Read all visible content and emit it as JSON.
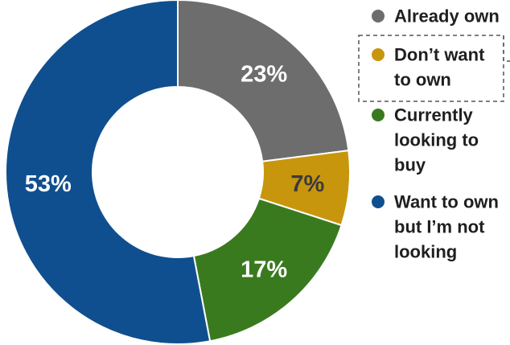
{
  "chart_data": {
    "type": "pie",
    "donut": true,
    "categories": [
      "Already own",
      "Don’t want to own",
      "Currently looking to buy",
      "Want to own but I’m not looking"
    ],
    "values": [
      23,
      7,
      17,
      53
    ],
    "value_labels": [
      "23%",
      "7%",
      "17%",
      "53%"
    ],
    "colors": [
      "#6d6d6d",
      "#c8960c",
      "#3a7a1f",
      "#0f4f8f"
    ],
    "legend": {
      "placement": "right",
      "entries": [
        {
          "lines": [
            "Already own"
          ],
          "color": "#6d6d6d",
          "highlighted": false
        },
        {
          "lines": [
            "Don’t want",
            "to own"
          ],
          "color": "#c8960c",
          "highlighted": true
        },
        {
          "lines": [
            "Currently",
            "looking to",
            "buy"
          ],
          "color": "#3a7a1f",
          "highlighted": false
        },
        {
          "lines": [
            "Want to own",
            "but I’m not",
            "looking"
          ],
          "color": "#0f4f8f",
          "highlighted": false
        }
      ]
    }
  }
}
